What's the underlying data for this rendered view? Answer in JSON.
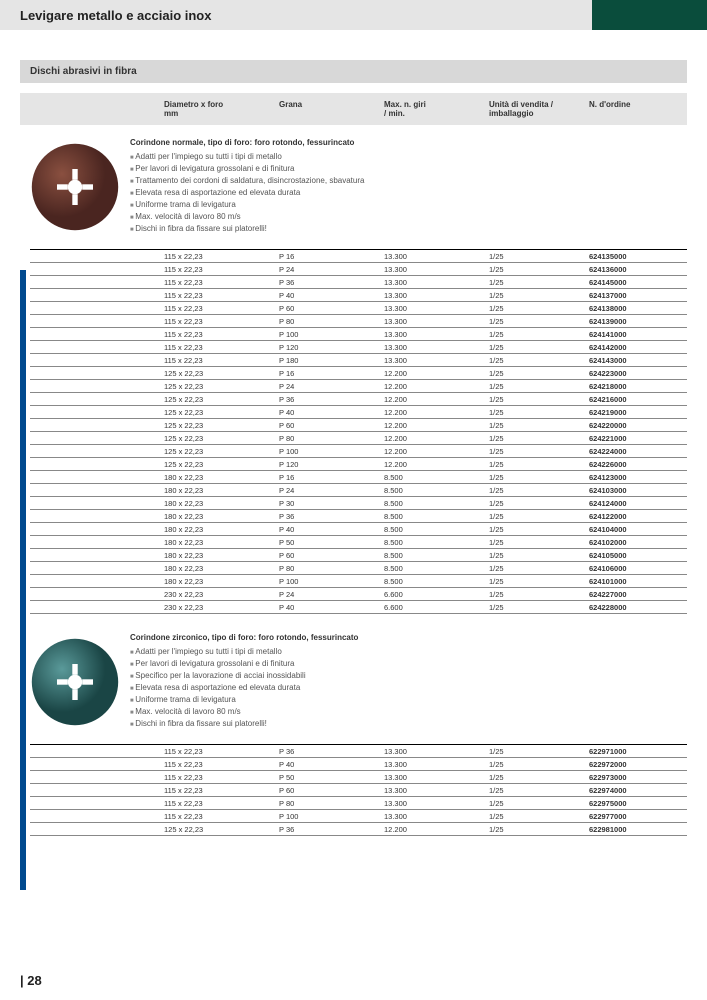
{
  "header": {
    "title": "Levigare metallo e acciaio inox"
  },
  "section": {
    "title": "Dischi abrasivi in fibra"
  },
  "columns": {
    "c1": "",
    "c2": "Diametro x foro\nmm",
    "c3": "Grana",
    "c4": "Max. n. giri\n/ min.",
    "c5": "Unità di vendita /\nimballaggio",
    "c6": "N. d'ordine"
  },
  "product1": {
    "disc_color": "#6b3a2e",
    "heading": "Corindone normale, tipo di foro: foro rotondo, fessurincato",
    "bullets": [
      "Adatti per l'impiego su tutti i tipi di metallo",
      "Per lavori di levigatura grossolani e di finitura",
      "Trattamento dei cordoni di saldatura, disincrostazione, sbavatura",
      "Elevata resa di asportazione ed elevata durata",
      "Uniforme trama di levigatura",
      "Max. velocità di lavoro 80 m/s",
      "Dischi in fibra da fissare sui platorelli!"
    ],
    "rows": [
      [
        "115 x 22,23",
        "P 16",
        "13.300",
        "1/25",
        "624135000"
      ],
      [
        "115 x 22,23",
        "P 24",
        "13.300",
        "1/25",
        "624136000"
      ],
      [
        "115 x 22,23",
        "P 36",
        "13.300",
        "1/25",
        "624145000"
      ],
      [
        "115 x 22,23",
        "P 40",
        "13.300",
        "1/25",
        "624137000"
      ],
      [
        "115 x 22,23",
        "P 60",
        "13.300",
        "1/25",
        "624138000"
      ],
      [
        "115 x 22,23",
        "P 80",
        "13.300",
        "1/25",
        "624139000"
      ],
      [
        "115 x 22,23",
        "P 100",
        "13.300",
        "1/25",
        "624141000"
      ],
      [
        "115 x 22,23",
        "P 120",
        "13.300",
        "1/25",
        "624142000"
      ],
      [
        "115 x 22,23",
        "P 180",
        "13.300",
        "1/25",
        "624143000"
      ],
      [
        "125 x 22,23",
        "P 16",
        "12.200",
        "1/25",
        "624223000"
      ],
      [
        "125 x 22,23",
        "P 24",
        "12.200",
        "1/25",
        "624218000"
      ],
      [
        "125 x 22,23",
        "P 36",
        "12.200",
        "1/25",
        "624216000"
      ],
      [
        "125 x 22,23",
        "P 40",
        "12.200",
        "1/25",
        "624219000"
      ],
      [
        "125 x 22,23",
        "P 60",
        "12.200",
        "1/25",
        "624220000"
      ],
      [
        "125 x 22,23",
        "P 80",
        "12.200",
        "1/25",
        "624221000"
      ],
      [
        "125 x 22,23",
        "P 100",
        "12.200",
        "1/25",
        "624224000"
      ],
      [
        "125 x 22,23",
        "P 120",
        "12.200",
        "1/25",
        "624226000"
      ],
      [
        "180 x 22,23",
        "P 16",
        "8.500",
        "1/25",
        "624123000"
      ],
      [
        "180 x 22,23",
        "P 24",
        "8.500",
        "1/25",
        "624103000"
      ],
      [
        "180 x 22,23",
        "P 30",
        "8.500",
        "1/25",
        "624124000"
      ],
      [
        "180 x 22,23",
        "P 36",
        "8.500",
        "1/25",
        "624122000"
      ],
      [
        "180 x 22,23",
        "P 40",
        "8.500",
        "1/25",
        "624104000"
      ],
      [
        "180 x 22,23",
        "P 50",
        "8.500",
        "1/25",
        "624102000"
      ],
      [
        "180 x 22,23",
        "P 60",
        "8.500",
        "1/25",
        "624105000"
      ],
      [
        "180 x 22,23",
        "P 80",
        "8.500",
        "1/25",
        "624106000"
      ],
      [
        "180 x 22,23",
        "P 100",
        "8.500",
        "1/25",
        "624101000"
      ],
      [
        "230 x 22,23",
        "P 24",
        "6.600",
        "1/25",
        "624227000"
      ],
      [
        "230 x 22,23",
        "P 40",
        "6.600",
        "1/25",
        "624228000"
      ]
    ]
  },
  "product2": {
    "disc_color": "#3a7878",
    "heading": "Corindone zirconico, tipo di foro: foro rotondo, fessurincato",
    "bullets": [
      "Adatti per l'impiego su tutti i tipi di metallo",
      "Per lavori di levigatura grossolani e di finitura",
      "Specifico per la lavorazione di acciai inossidabili",
      "Elevata resa di asportazione ed elevata durata",
      "Uniforme trama di levigatura",
      "Max. velocità di lavoro 80 m/s",
      "Dischi in fibra da fissare sui platorelli!"
    ],
    "rows": [
      [
        "115 x 22,23",
        "P 36",
        "13.300",
        "1/25",
        "622971000"
      ],
      [
        "115 x 22,23",
        "P 40",
        "13.300",
        "1/25",
        "622972000"
      ],
      [
        "115 x 22,23",
        "P 50",
        "13.300",
        "1/25",
        "622973000"
      ],
      [
        "115 x 22,23",
        "P 60",
        "13.300",
        "1/25",
        "622974000"
      ],
      [
        "115 x 22,23",
        "P 80",
        "13.300",
        "1/25",
        "622975000"
      ],
      [
        "115 x 22,23",
        "P 100",
        "13.300",
        "1/25",
        "622977000"
      ],
      [
        "125 x 22,23",
        "P 36",
        "12.200",
        "1/25",
        "622981000"
      ]
    ]
  },
  "footer": {
    "page": "| 28"
  }
}
